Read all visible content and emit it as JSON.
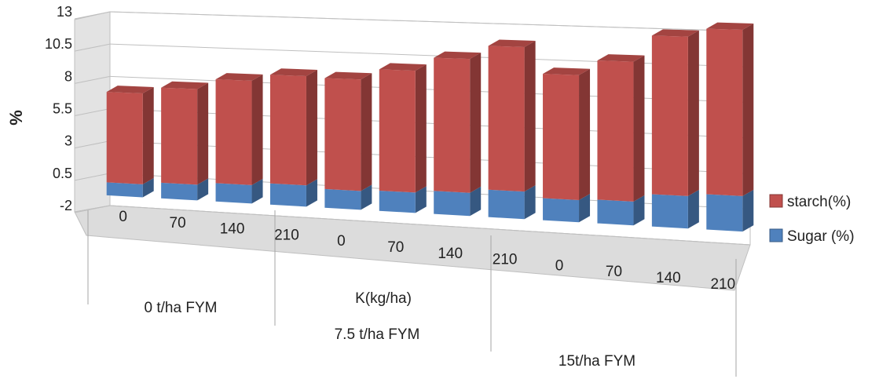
{
  "chart_data": {
    "type": "bar",
    "stacked": true,
    "three_d": true,
    "title": "",
    "ylabel": "%",
    "xlabel": "K(kg/ha)",
    "yticks": [
      "13",
      "10.5",
      "8",
      "5.5",
      "3",
      "0.5",
      "-2"
    ],
    "ylim": [
      -2,
      13
    ],
    "grid": true,
    "legend_position": "right",
    "categories": [
      "0",
      "70",
      "140",
      "210",
      "0",
      "70",
      "140",
      "210",
      "0",
      "70",
      "140",
      "210"
    ],
    "groups": [
      {
        "label": "0 t/ha FYM",
        "size": 4
      },
      {
        "label": "7.5 t/ha FYM",
        "size": 4
      },
      {
        "label": "15t/ha FYM",
        "size": 4
      }
    ],
    "series": [
      {
        "name": "Sugar (%)",
        "color": "#4f81bd",
        "values": [
          1.0,
          1.2,
          1.4,
          1.6,
          1.4,
          1.5,
          1.7,
          2.0,
          1.6,
          1.7,
          2.3,
          2.5
        ]
      },
      {
        "name": "starch(%)",
        "color": "#c0504d",
        "values": [
          7.0,
          7.3,
          7.9,
          8.2,
          8.3,
          9.0,
          9.8,
          10.5,
          9.0,
          10.0,
          11.3,
          11.7
        ]
      }
    ]
  }
}
